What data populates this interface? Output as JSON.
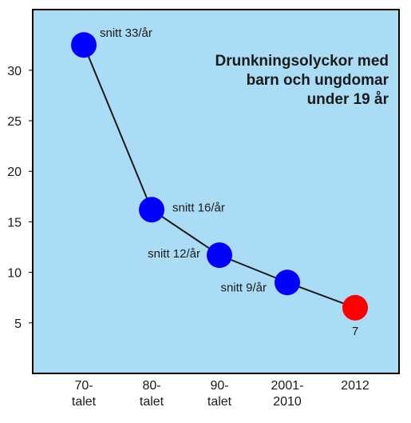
{
  "chart_data": {
    "type": "line",
    "title_lines": [
      "Drunkningsolyckor med",
      "barn och ungdomar",
      "under 19 år"
    ],
    "categories": [
      [
        "70-",
        "talet"
      ],
      [
        "80-",
        "talet"
      ],
      [
        "90-",
        "talet"
      ],
      [
        "2001-",
        "2010"
      ],
      [
        "2012"
      ]
    ],
    "values": [
      32.5,
      16.2,
      11.7,
      9.0,
      6.5
    ],
    "point_labels": [
      "snitt 33/år",
      "snitt 16/år",
      "snitt 12/år",
      "snitt 9/år",
      "7"
    ],
    "y_ticks": [
      5,
      10,
      15,
      20,
      25,
      30
    ],
    "ylim": [
      0,
      36
    ],
    "grid": false,
    "colors": {
      "plot_background": "#aadcf5",
      "axis": "#000000",
      "line": "#1a1a1a",
      "marker": "#0000ff",
      "highlight_marker": "#ff0000"
    }
  }
}
